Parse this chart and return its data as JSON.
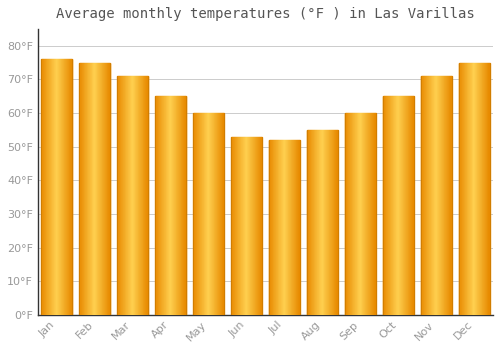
{
  "title": "Average monthly temperatures (°F ) in Las Varillas",
  "months": [
    "Jan",
    "Feb",
    "Mar",
    "Apr",
    "May",
    "Jun",
    "Jul",
    "Aug",
    "Sep",
    "Oct",
    "Nov",
    "Dec"
  ],
  "values": [
    76,
    75,
    71,
    65,
    60,
    53,
    52,
    55,
    60,
    65,
    71,
    75
  ],
  "bar_color_left": "#F5A623",
  "bar_color_mid": "#FFD060",
  "bar_color_right": "#E8900A",
  "background_color": "#FFFFFF",
  "grid_color": "#CCCCCC",
  "ylim": [
    0,
    85
  ],
  "yticks": [
    0,
    10,
    20,
    30,
    40,
    50,
    60,
    70,
    80
  ],
  "title_fontsize": 10,
  "tick_fontsize": 8,
  "tick_color": "#999999",
  "title_color": "#555555",
  "bar_width": 0.82
}
